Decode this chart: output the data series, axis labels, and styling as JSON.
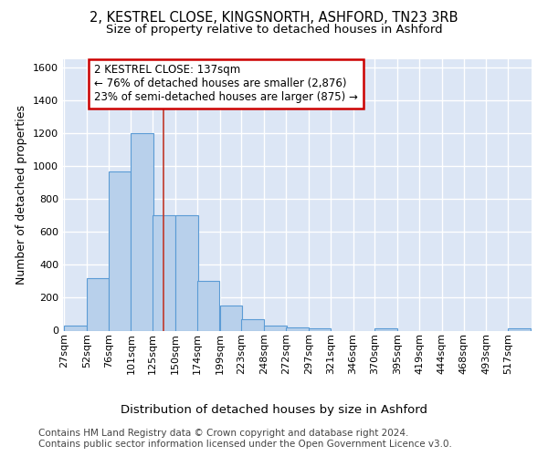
{
  "title1": "2, KESTREL CLOSE, KINGSNORTH, ASHFORD, TN23 3RB",
  "title2": "Size of property relative to detached houses in Ashford",
  "xlabel": "Distribution of detached houses by size in Ashford",
  "ylabel": "Number of detached properties",
  "footer1": "Contains HM Land Registry data © Crown copyright and database right 2024.",
  "footer2": "Contains public sector information licensed under the Open Government Licence v3.0.",
  "bin_labels": [
    "27sqm",
    "52sqm",
    "76sqm",
    "101sqm",
    "125sqm",
    "150sqm",
    "174sqm",
    "199sqm",
    "223sqm",
    "248sqm",
    "272sqm",
    "297sqm",
    "321sqm",
    "346sqm",
    "370sqm",
    "395sqm",
    "419sqm",
    "444sqm",
    "468sqm",
    "493sqm",
    "517sqm"
  ],
  "bin_edges": [
    27,
    52,
    76,
    101,
    125,
    150,
    174,
    199,
    223,
    248,
    272,
    297,
    321,
    346,
    370,
    395,
    419,
    444,
    468,
    493,
    517
  ],
  "bar_heights": [
    30,
    320,
    970,
    1200,
    700,
    700,
    300,
    150,
    70,
    30,
    20,
    15,
    0,
    0,
    15,
    0,
    0,
    0,
    0,
    0,
    15
  ],
  "bar_color": "#b8d0eb",
  "bar_edge_color": "#5b9bd5",
  "property_size": 137,
  "property_line_color": "#c0392b",
  "annotation_text": "2 KESTREL CLOSE: 137sqm\n← 76% of detached houses are smaller (2,876)\n23% of semi-detached houses are larger (875) →",
  "annotation_box_edgecolor": "#cc0000",
  "ylim_max": 1650,
  "bg_color": "#dce6f5",
  "grid_color": "#ffffff",
  "title1_fontsize": 10.5,
  "title2_fontsize": 9.5,
  "tick_fontsize": 8,
  "ylabel_fontsize": 9,
  "xlabel_fontsize": 9.5,
  "ann_fontsize": 8.5,
  "footer_fontsize": 7.5
}
